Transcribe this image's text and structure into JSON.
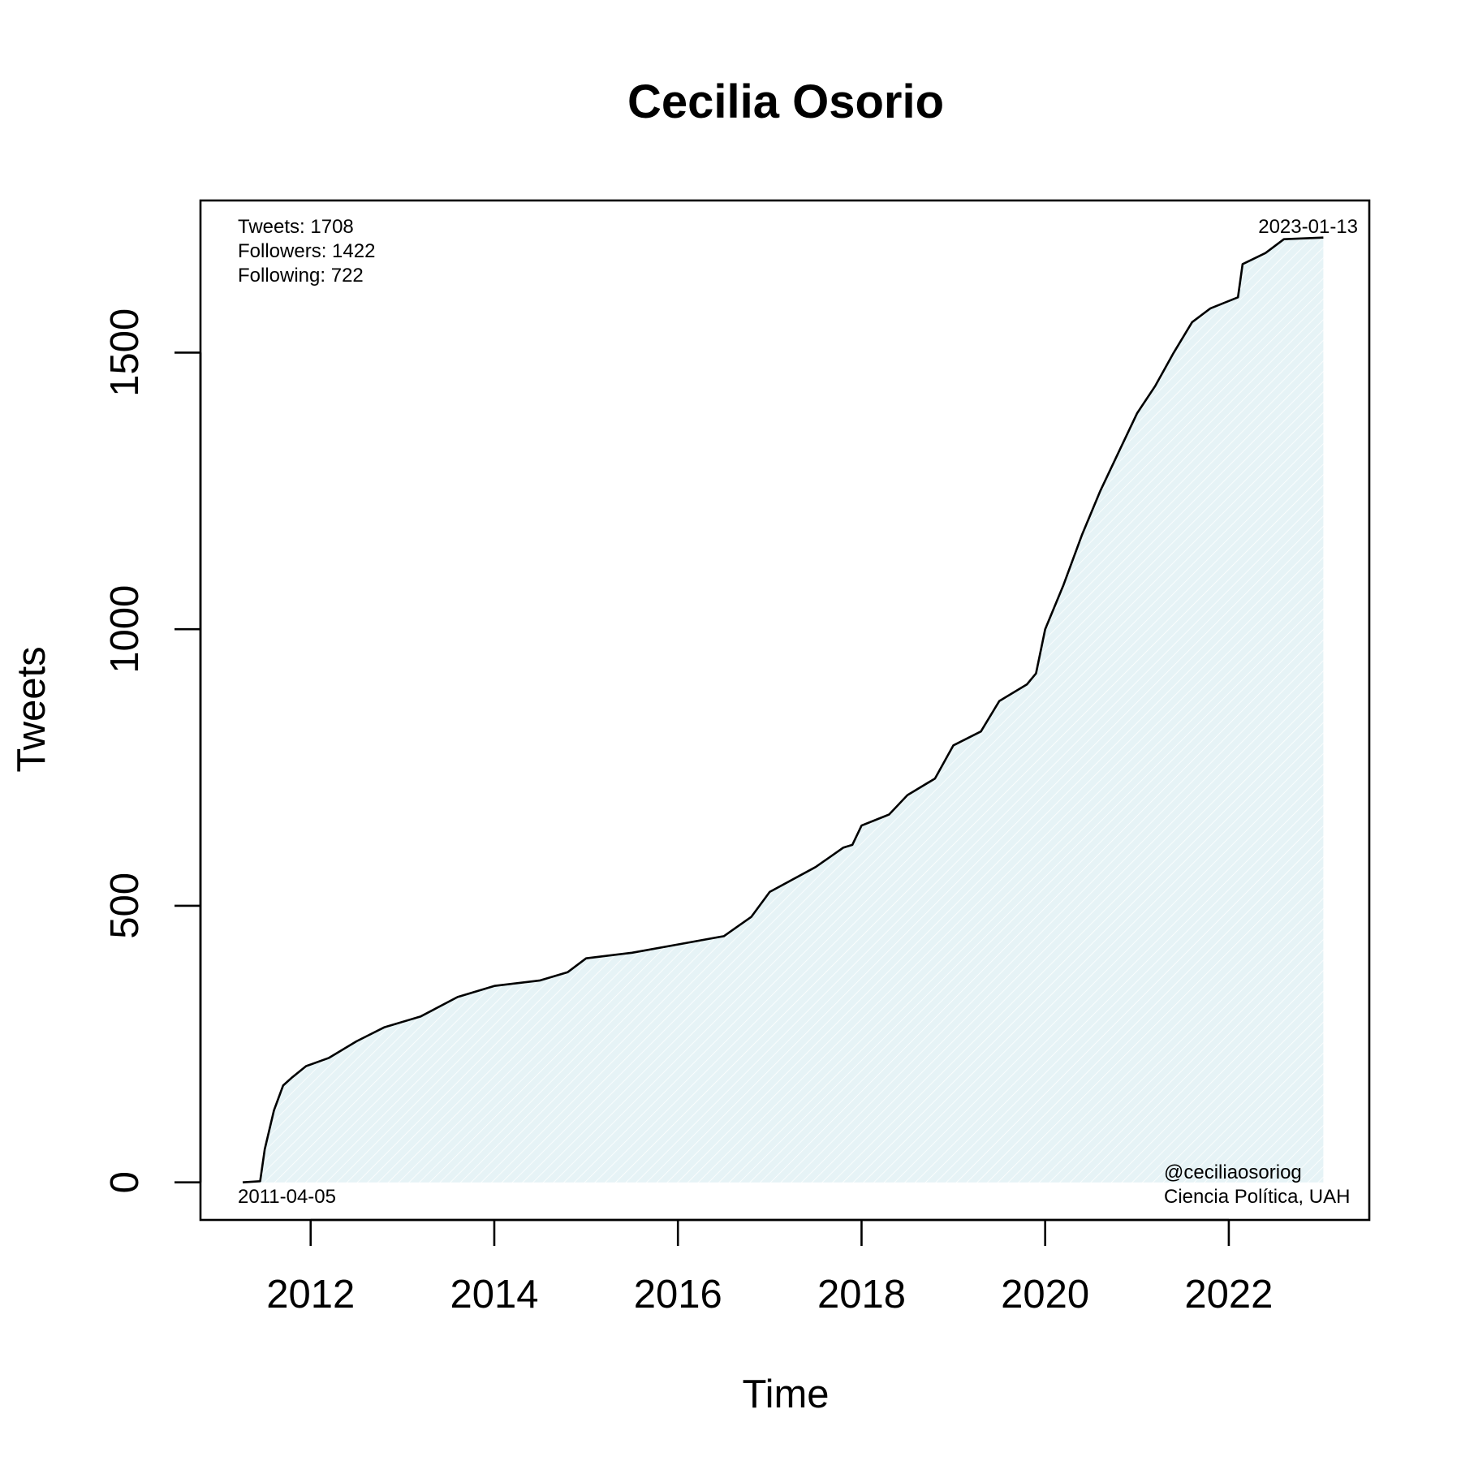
{
  "chart_data": {
    "type": "area",
    "title": "Cecilia Osorio",
    "xlabel": "Time",
    "ylabel": "Tweets",
    "x_ticks": [
      "2012",
      "2014",
      "2016",
      "2018",
      "2020",
      "2022"
    ],
    "x_tick_values": [
      2012,
      2014,
      2016,
      2018,
      2020,
      2022
    ],
    "y_ticks": [
      "0",
      "500",
      "1000",
      "1500"
    ],
    "y_tick_values": [
      0,
      500,
      1000,
      1500
    ],
    "xlim": [
      2010.8,
      2023.53
    ],
    "ylim": [
      -68,
      1775
    ],
    "grid": false,
    "legend": "none",
    "colors": {
      "line": "#000000",
      "fill": "#e6f3f6",
      "hatch": "#ffffff"
    },
    "annotations": {
      "tweets": "Tweets: 1708",
      "followers": "Followers: 1422",
      "following": "Following: 722",
      "end_date": "2023-01-13",
      "start_date": "2011-04-05",
      "handle": "@ceciliaosoriog",
      "affiliation": "Ciencia Política, UAH"
    },
    "series": [
      {
        "x": [
          2011.26,
          2011.45,
          2011.5,
          2011.6,
          2011.7,
          2011.8,
          2011.95,
          2012.2,
          2012.5,
          2012.8,
          2013.2,
          2013.6,
          2014.0,
          2014.5,
          2014.8,
          2015.0,
          2015.5,
          2016.0,
          2016.5,
          2016.8,
          2017.0,
          2017.5,
          2017.8,
          2017.9,
          2018.0,
          2018.3,
          2018.5,
          2018.8,
          2019.0,
          2019.3,
          2019.5,
          2019.8,
          2019.9,
          2020.0,
          2020.2,
          2020.4,
          2020.6,
          2020.8,
          2021.0,
          2021.2,
          2021.4,
          2021.6,
          2021.8,
          2022.1,
          2022.15,
          2022.4,
          2022.6,
          2023.03
        ],
        "y": [
          0,
          2,
          60,
          130,
          175,
          190,
          210,
          225,
          255,
          280,
          300,
          335,
          355,
          365,
          380,
          405,
          415,
          430,
          445,
          480,
          525,
          570,
          605,
          610,
          645,
          665,
          700,
          730,
          790,
          815,
          870,
          900,
          920,
          1000,
          1080,
          1170,
          1250,
          1320,
          1390,
          1440,
          1500,
          1555,
          1580,
          1600,
          1660,
          1680,
          1705,
          1708
        ]
      }
    ]
  }
}
